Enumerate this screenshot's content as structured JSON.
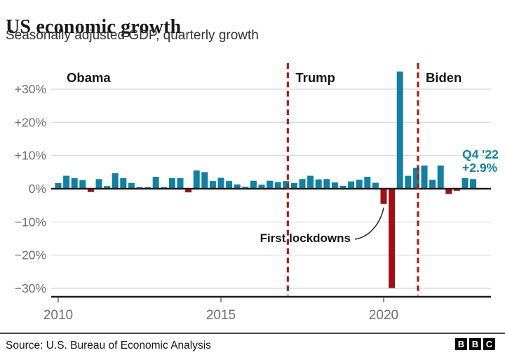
{
  "header": {
    "title": "US economic growth",
    "subtitle": "Seasonally adjusted GDP, quarterly growth"
  },
  "footer": {
    "source": "Source: U.S. Bureau of Economic Analysis",
    "logo_letters": [
      "B",
      "B",
      "C"
    ]
  },
  "chart_data": {
    "type": "bar",
    "title": "US economic growth",
    "subtitle": "Seasonally adjusted GDP, quarterly growth",
    "unit": "percent, quarterly growth (annualized)",
    "frequency": "quarterly",
    "start_quarter": "2010 Q1",
    "end_quarter": "2022 Q4",
    "values": [
      1.7,
      3.9,
      3.2,
      2.6,
      -1.0,
      2.9,
      0.8,
      4.7,
      3.2,
      1.7,
      0.5,
      0.5,
      3.6,
      0.5,
      3.2,
      3.2,
      -1.1,
      5.5,
      5.0,
      2.3,
      3.3,
      2.3,
      1.3,
      0.6,
      2.4,
      1.2,
      2.4,
      2.0,
      2.3,
      1.7,
      2.9,
      3.9,
      2.8,
      2.9,
      1.9,
      0.9,
      2.2,
      2.7,
      3.6,
      1.8,
      -4.6,
      -29.9,
      35.3,
      3.9,
      6.3,
      7.0,
      2.7,
      7.0,
      -1.6,
      -0.6,
      3.2,
      2.9
    ],
    "ylim": [
      -33,
      39
    ],
    "y_ticks": [
      30,
      20,
      10,
      0,
      -10,
      -20,
      -30
    ],
    "y_tick_labels": [
      "+30%",
      "+20%",
      "+10%",
      "0%",
      "−10%",
      "−20%",
      "−30%"
    ],
    "x_tick_years": [
      "2010",
      "2015",
      "2020"
    ],
    "grid": true,
    "legend": false,
    "presidents": [
      {
        "name": "Obama",
        "start_year": null
      },
      {
        "name": "Trump",
        "start_year": 2017
      },
      {
        "name": "Biden",
        "start_year": 2021
      }
    ],
    "annotation": {
      "text": "First lockdowns",
      "points_to": "2020 Q2"
    },
    "end_label": {
      "line1": "Q4 '22",
      "line2": "+2.9%"
    },
    "colors": {
      "positive_bar": "#1380A1",
      "negative_bar": "#9F1117",
      "president_line": "#A5201A",
      "grid_line": "#D7D7D7",
      "axis_line": "#1C1C1E",
      "tick_label": "#6F6F73",
      "label_text": "#141414",
      "end_label_text": "#1581A3",
      "annotation_line": "#2B2B2B"
    }
  }
}
